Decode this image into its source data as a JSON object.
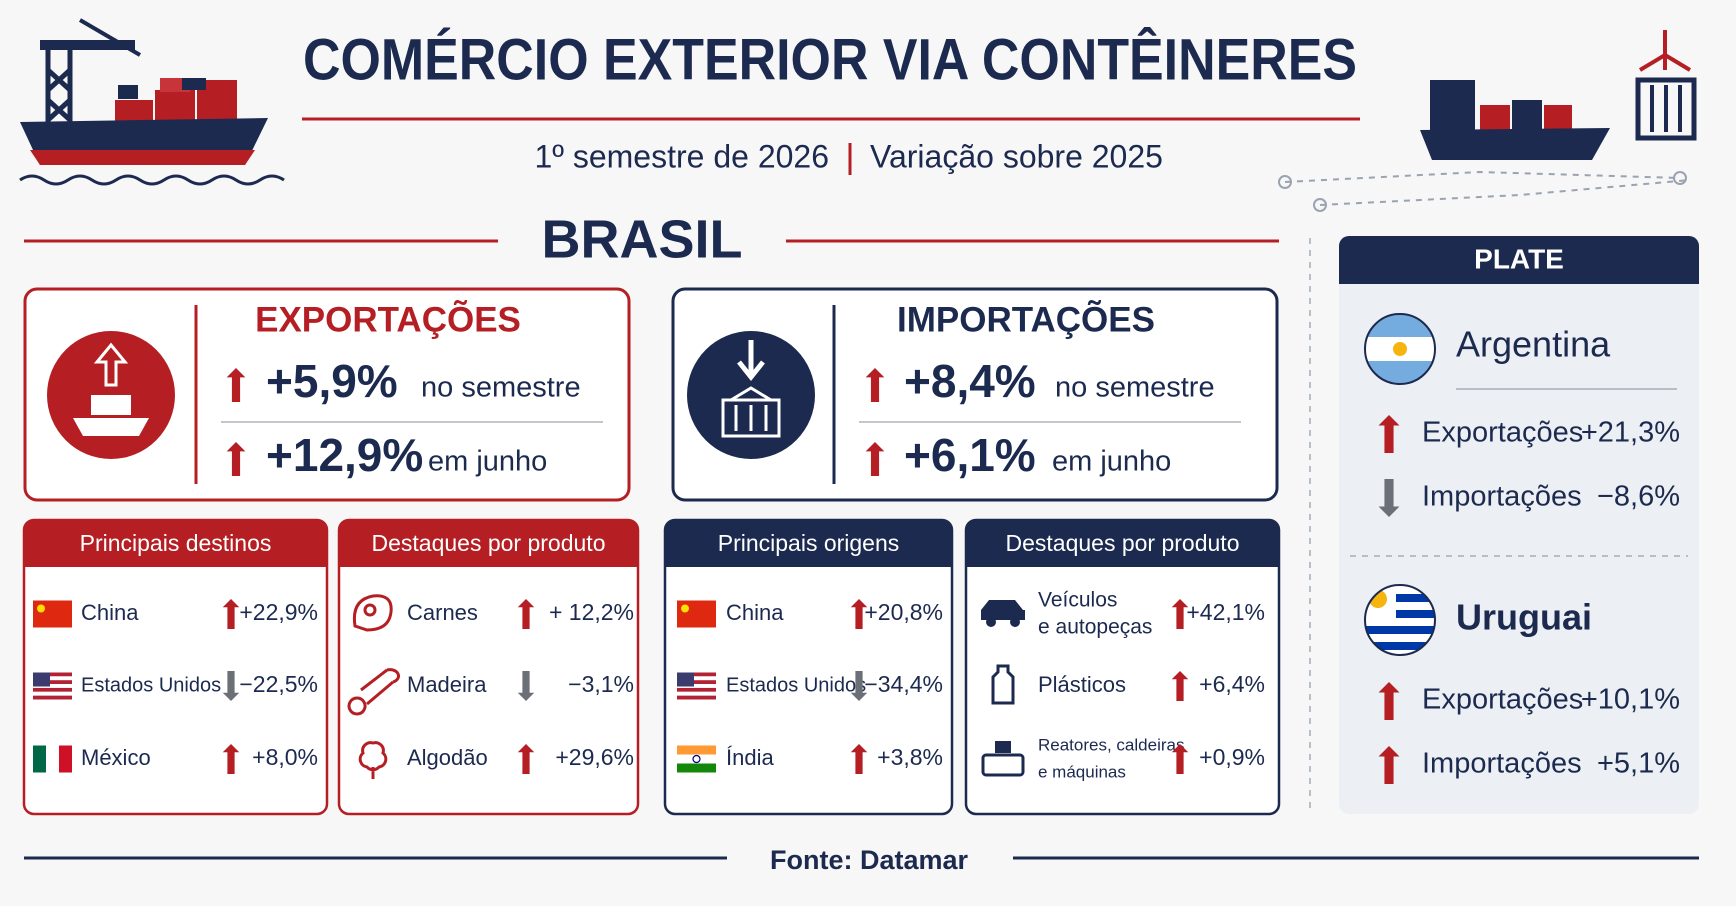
{
  "header": {
    "title": "COMÉRCIO EXTERIOR VIA CONTÊINERES",
    "subtitle": "1º semestre de 2026",
    "subtitle_note": "Variação sobre 2025"
  },
  "brasil": {
    "title": "BRASIL",
    "exports": {
      "title": "EXPORTAÇÕES",
      "rows": [
        {
          "value": "+5,9%",
          "label": "no semestre"
        },
        {
          "value": "+12,9%",
          "label": "em junho"
        }
      ]
    },
    "imports": {
      "title": "IMPORTAÇÕES",
      "rows": [
        {
          "value": "+8,4%",
          "label": "no semestre"
        },
        {
          "value": "+6,1%",
          "label": "em junho"
        }
      ]
    },
    "cards": [
      {
        "title": "Principais destinos",
        "rows": [
          {
            "name": "China",
            "value": "+22,9%"
          },
          {
            "name": "Estados Unidos",
            "value": "−22,5%"
          },
          {
            "name": "México",
            "value": "+8,0%"
          }
        ]
      },
      {
        "title": "Destaques por produto",
        "rows": [
          {
            "name": "Carnes",
            "value": "+ 12,2%"
          },
          {
            "name": "Madeira",
            "value": "−3,1%"
          },
          {
            "name": "Algodão",
            "value": "+29,6%"
          }
        ]
      },
      {
        "title": "Principais origens",
        "rows": [
          {
            "name": "China",
            "value": "+20,8%"
          },
          {
            "name": "Estados Unidos",
            "value": "−34,4%"
          },
          {
            "name": "Índia",
            "value": "+3,8%"
          }
        ]
      },
      {
        "title": "Destaques por produto",
        "rows": [
          {
            "name": [
              "Veículos",
              "e autopeças"
            ],
            "value": "+42,1%"
          },
          {
            "name": "Plásticos",
            "value": "+6,4%"
          },
          {
            "name": [
              "Reatores, caldeiras",
              "e máquinas"
            ],
            "value": "+0,9%"
          }
        ]
      }
    ]
  },
  "plate": {
    "title": "PLATE",
    "countries": [
      {
        "name": "Argentina",
        "rows": [
          {
            "label": "Exportações",
            "value": "+21,3%"
          },
          {
            "label": "Importações",
            "value": "−8,6%"
          }
        ]
      },
      {
        "name": "Uruguai",
        "rows": [
          {
            "label": "Exportações",
            "value": "+10,1%"
          },
          {
            "label": "Importações",
            "value": "+5,1%"
          }
        ]
      }
    ]
  },
  "footer": {
    "source": "Fonte: Datamar"
  }
}
